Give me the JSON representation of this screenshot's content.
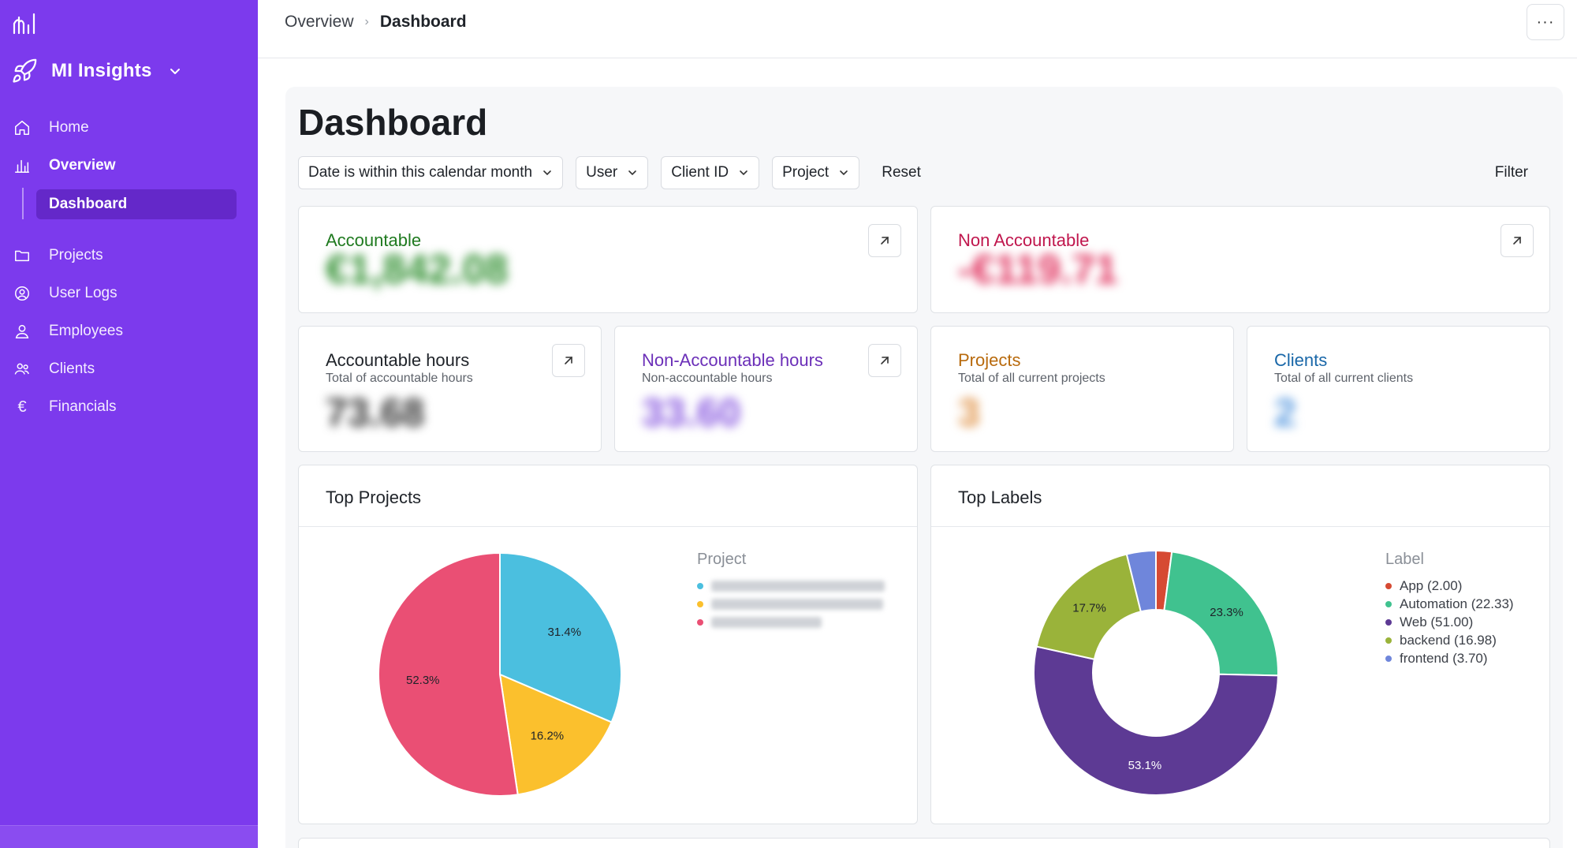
{
  "sidebar": {
    "brand": "MI Insights",
    "items": [
      {
        "label": "Home",
        "icon": "home-icon"
      },
      {
        "label": "Overview",
        "icon": "bar-chart-icon"
      },
      {
        "label": "Dashboard"
      },
      {
        "label": "Projects",
        "icon": "folder-icon"
      },
      {
        "label": "User Logs",
        "icon": "user-circle-icon"
      },
      {
        "label": "Employees",
        "icon": "user-icon"
      },
      {
        "label": "Clients",
        "icon": "users-icon"
      },
      {
        "label": "Financials",
        "icon": "euro-icon"
      }
    ],
    "bg_color": "#7c3aed"
  },
  "breadcrumb": {
    "parent": "Overview",
    "current": "Dashboard"
  },
  "topbar": {
    "more_label": "···"
  },
  "page": {
    "title": "Dashboard"
  },
  "filters": {
    "date": "Date is within this calendar month",
    "user": "User",
    "client_id": "Client ID",
    "project": "Project",
    "reset": "Reset",
    "filter": "Filter"
  },
  "cards": {
    "accountable": {
      "title": "Accountable",
      "value": "€1,842.08",
      "color": "#1f7a1f"
    },
    "non_accountable": {
      "title": "Non Accountable",
      "value": "-€119.71",
      "color": "#c0164d"
    },
    "accountable_hours": {
      "title": "Accountable hours",
      "subtitle": "Total of accountable hours",
      "value": "73.68"
    },
    "non_accountable_hours": {
      "title": "Non-Accountable hours",
      "subtitle": "Non-accountable hours",
      "value": "33.60",
      "color": "#6b2fb8"
    },
    "projects": {
      "title": "Projects",
      "subtitle": "Total of all current projects",
      "value": "3",
      "color": "#b86a0d"
    },
    "clients": {
      "title": "Clients",
      "subtitle": "Total of all current clients",
      "value": "2",
      "color": "#1967a8"
    }
  },
  "top_projects": {
    "title": "Top Projects",
    "legend_title": "Project"
  },
  "top_labels": {
    "title": "Top Labels",
    "legend_title": "Label"
  },
  "chart_data": [
    {
      "type": "pie",
      "title": "Top Projects",
      "categories": [
        "",
        "",
        ""
      ],
      "values": [
        31.4,
        16.2,
        52.3
      ],
      "labels": [
        "31.4%",
        "16.2%",
        "52.3%"
      ],
      "colors": [
        "#4bbfdf",
        "#fbc02d",
        "#ea4f74"
      ]
    },
    {
      "type": "pie",
      "title": "Top Labels",
      "categories": [
        "App (2.00)",
        "Automation (22.33)",
        "Web (51.00)",
        "backend (16.98)",
        "frontend (3.70)"
      ],
      "values": [
        2.0,
        22.33,
        51.0,
        16.98,
        3.7
      ],
      "labels": [
        "",
        "23.3%",
        "53.1%",
        "17.7%",
        ""
      ],
      "colors": [
        "#d64a33",
        "#40c28f",
        "#5d3a94",
        "#9ab33a",
        "#6f86db"
      ]
    }
  ]
}
